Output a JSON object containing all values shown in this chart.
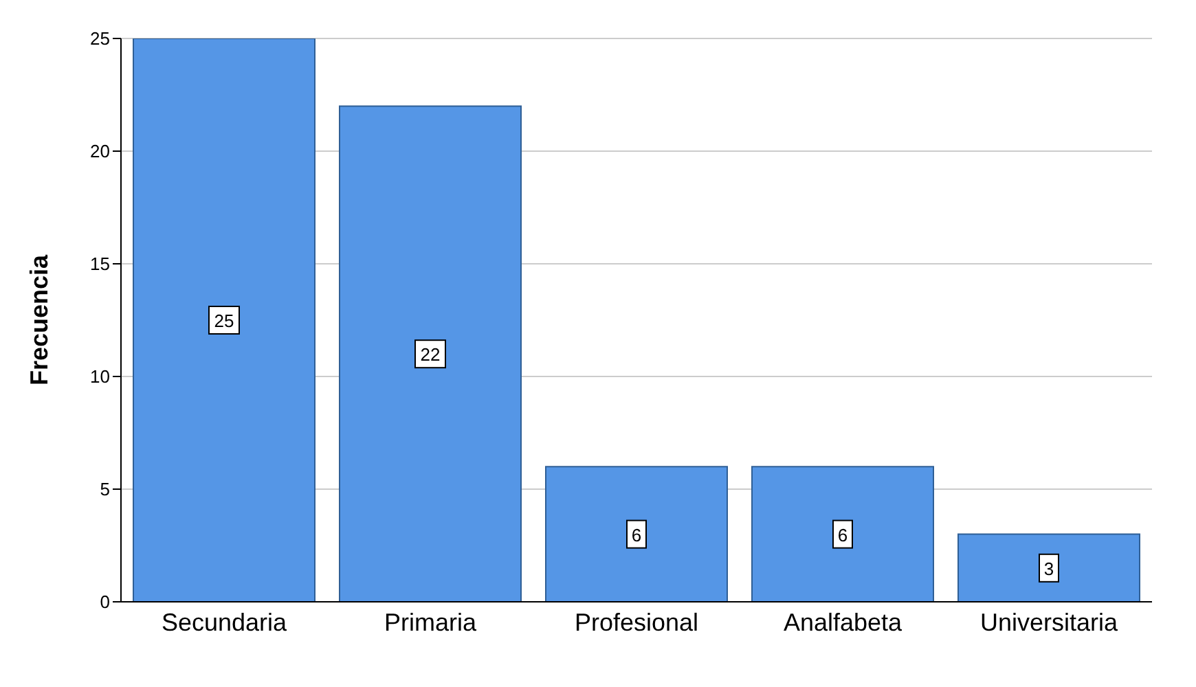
{
  "chart_data": {
    "type": "bar",
    "ylabel": "Frecuencia",
    "categories": [
      "Secundaria",
      "Primaria",
      "Profesional",
      "Analfabeta",
      "Universitaria"
    ],
    "values": [
      25,
      22,
      6,
      6,
      3
    ],
    "color": "#5596e6",
    "ylim": [
      0,
      25
    ],
    "yticks": [
      0,
      5,
      10,
      15,
      20,
      25
    ],
    "grid": "y",
    "data_labels": true
  }
}
